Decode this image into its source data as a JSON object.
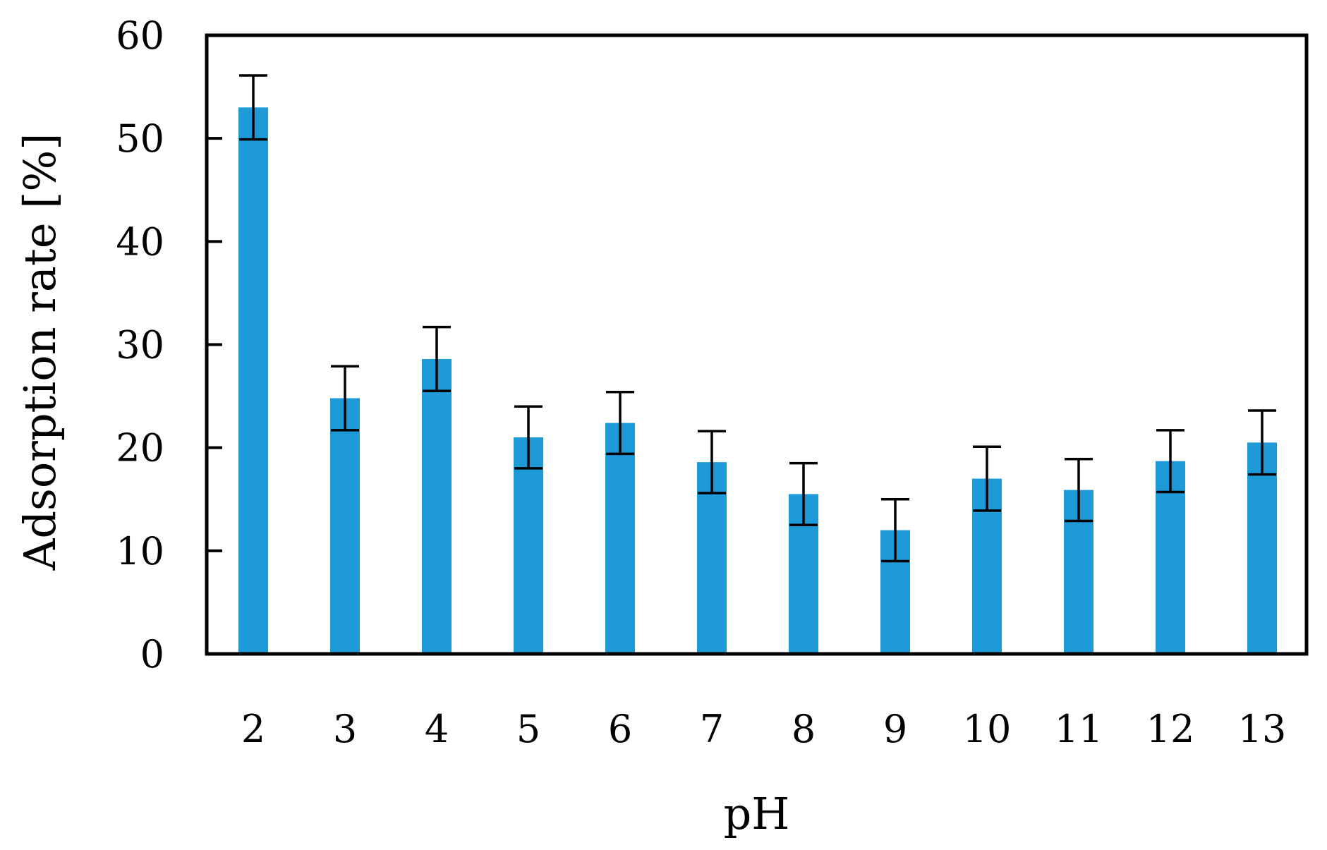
{
  "chart_data": {
    "type": "bar",
    "title": "",
    "xlabel": "pH",
    "ylabel": "Adsorption rate [%]",
    "categories": [
      "2",
      "3",
      "4",
      "5",
      "6",
      "7",
      "8",
      "9",
      "10",
      "11",
      "12",
      "13"
    ],
    "values": [
      53.0,
      24.8,
      28.6,
      21.0,
      22.4,
      18.6,
      15.5,
      12.0,
      17.0,
      15.9,
      18.7,
      20.5
    ],
    "errors": [
      3.1,
      3.1,
      3.1,
      3.0,
      3.0,
      3.0,
      3.0,
      3.0,
      3.1,
      3.0,
      3.0,
      3.1
    ],
    "ylim": [
      0,
      60
    ],
    "yticks": [
      "0",
      "10",
      "20",
      "30",
      "40",
      "50",
      "60"
    ],
    "grid": false,
    "legend": "none",
    "colors": {
      "bar": "#1f9ad8",
      "error_bar": "#000000",
      "axes": "#000000"
    }
  }
}
